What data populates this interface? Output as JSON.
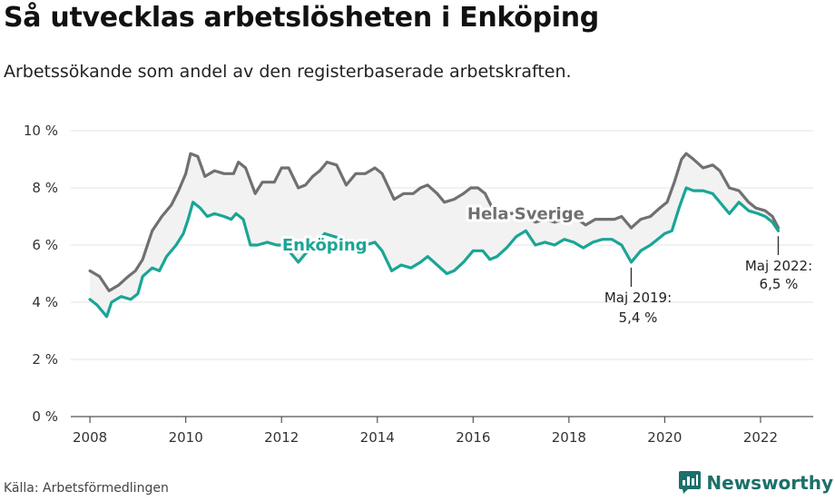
{
  "title": "Så utvecklas arbetslösheten i Enköping",
  "subtitle": "Arbetssökande som andel av den registerbaserade arbetskraften.",
  "source": "Källa: Arbetsförmedlingen",
  "brand": {
    "name": "Newsworthy",
    "icon": "newsworthy-logo-icon"
  },
  "colors": {
    "sweden": "#707070",
    "enkoping": "#1aa596",
    "fill": "#f2f2f2",
    "grid": "#e3e3e3",
    "axis": "#555555"
  },
  "chart_data": {
    "type": "line",
    "title": "Så utvecklas arbetslösheten i Enköping",
    "ylim": [
      0,
      10
    ],
    "xlim": [
      2007.6,
      2023.1
    ],
    "y_ticks": [
      0,
      2,
      4,
      6,
      8,
      10
    ],
    "y_tick_labels": [
      "0 %",
      "2 %",
      "4 %",
      "6 %",
      "8 %",
      "10 %"
    ],
    "x_ticks": [
      2008,
      2010,
      2012,
      2014,
      2016,
      2018,
      2020,
      2022
    ],
    "x_tick_labels": [
      "2008",
      "2010",
      "2012",
      "2014",
      "2016",
      "2018",
      "2020",
      "2022"
    ],
    "series": [
      {
        "name": "Hela Sverige",
        "label": "Hela Sverige",
        "points": [
          [
            2008.0,
            5.1
          ],
          [
            2008.2,
            4.9
          ],
          [
            2008.4,
            4.4
          ],
          [
            2008.6,
            4.6
          ],
          [
            2008.8,
            4.9
          ],
          [
            2008.95,
            5.1
          ],
          [
            2009.1,
            5.5
          ],
          [
            2009.3,
            6.5
          ],
          [
            2009.5,
            7.0
          ],
          [
            2009.7,
            7.4
          ],
          [
            2009.85,
            7.9
          ],
          [
            2010.0,
            8.5
          ],
          [
            2010.1,
            9.2
          ],
          [
            2010.25,
            9.1
          ],
          [
            2010.4,
            8.4
          ],
          [
            2010.6,
            8.6
          ],
          [
            2010.8,
            8.5
          ],
          [
            2011.0,
            8.5
          ],
          [
            2011.1,
            8.9
          ],
          [
            2011.25,
            8.7
          ],
          [
            2011.45,
            7.8
          ],
          [
            2011.6,
            8.2
          ],
          [
            2011.85,
            8.2
          ],
          [
            2012.0,
            8.7
          ],
          [
            2012.15,
            8.7
          ],
          [
            2012.35,
            8.0
          ],
          [
            2012.5,
            8.1
          ],
          [
            2012.65,
            8.4
          ],
          [
            2012.8,
            8.6
          ],
          [
            2012.95,
            8.9
          ],
          [
            2013.15,
            8.8
          ],
          [
            2013.35,
            8.1
          ],
          [
            2013.55,
            8.5
          ],
          [
            2013.75,
            8.5
          ],
          [
            2013.95,
            8.7
          ],
          [
            2014.1,
            8.5
          ],
          [
            2014.35,
            7.6
          ],
          [
            2014.55,
            7.8
          ],
          [
            2014.75,
            7.8
          ],
          [
            2014.9,
            8.0
          ],
          [
            2015.05,
            8.1
          ],
          [
            2015.25,
            7.8
          ],
          [
            2015.4,
            7.5
          ],
          [
            2015.6,
            7.6
          ],
          [
            2015.8,
            7.8
          ],
          [
            2015.95,
            8.0
          ],
          [
            2016.1,
            8.0
          ],
          [
            2016.25,
            7.8
          ],
          [
            2016.4,
            7.3
          ],
          [
            2016.6,
            7.2
          ],
          [
            2016.8,
            7.1
          ],
          [
            2016.95,
            7.2
          ],
          [
            2017.1,
            7.0
          ],
          [
            2017.3,
            6.8
          ],
          [
            2017.5,
            6.9
          ],
          [
            2017.7,
            6.8
          ],
          [
            2017.9,
            6.9
          ],
          [
            2018.1,
            7.0
          ],
          [
            2018.35,
            6.7
          ],
          [
            2018.55,
            6.9
          ],
          [
            2018.75,
            6.9
          ],
          [
            2018.95,
            6.9
          ],
          [
            2019.1,
            7.0
          ],
          [
            2019.3,
            6.6
          ],
          [
            2019.5,
            6.9
          ],
          [
            2019.7,
            7.0
          ],
          [
            2019.9,
            7.3
          ],
          [
            2020.05,
            7.5
          ],
          [
            2020.2,
            8.2
          ],
          [
            2020.35,
            9.0
          ],
          [
            2020.45,
            9.2
          ],
          [
            2020.6,
            9.0
          ],
          [
            2020.8,
            8.7
          ],
          [
            2021.0,
            8.8
          ],
          [
            2021.15,
            8.6
          ],
          [
            2021.35,
            8.0
          ],
          [
            2021.55,
            7.9
          ],
          [
            2021.75,
            7.5
          ],
          [
            2021.9,
            7.3
          ],
          [
            2022.1,
            7.2
          ],
          [
            2022.25,
            7.0
          ],
          [
            2022.37,
            6.6
          ]
        ]
      },
      {
        "name": "Enköping",
        "label": "Enköping",
        "points": [
          [
            2008.0,
            4.1
          ],
          [
            2008.15,
            3.9
          ],
          [
            2008.35,
            3.5
          ],
          [
            2008.45,
            4.0
          ],
          [
            2008.65,
            4.2
          ],
          [
            2008.85,
            4.1
          ],
          [
            2009.0,
            4.3
          ],
          [
            2009.1,
            4.9
          ],
          [
            2009.3,
            5.2
          ],
          [
            2009.45,
            5.1
          ],
          [
            2009.6,
            5.6
          ],
          [
            2009.8,
            6.0
          ],
          [
            2009.95,
            6.4
          ],
          [
            2010.05,
            6.9
          ],
          [
            2010.15,
            7.5
          ],
          [
            2010.3,
            7.3
          ],
          [
            2010.45,
            7.0
          ],
          [
            2010.6,
            7.1
          ],
          [
            2010.8,
            7.0
          ],
          [
            2010.95,
            6.9
          ],
          [
            2011.05,
            7.1
          ],
          [
            2011.2,
            6.9
          ],
          [
            2011.35,
            6.0
          ],
          [
            2011.5,
            6.0
          ],
          [
            2011.7,
            6.1
          ],
          [
            2011.9,
            6.0
          ],
          [
            2012.05,
            6.0
          ],
          [
            2012.2,
            5.7
          ],
          [
            2012.35,
            5.4
          ],
          [
            2012.5,
            5.7
          ],
          [
            2012.7,
            6.0
          ],
          [
            2012.9,
            6.4
          ],
          [
            2013.1,
            6.3
          ],
          [
            2013.3,
            6.2
          ],
          [
            2013.5,
            6.1
          ],
          [
            2013.75,
            6.0
          ],
          [
            2013.95,
            6.1
          ],
          [
            2014.1,
            5.8
          ],
          [
            2014.3,
            5.1
          ],
          [
            2014.5,
            5.3
          ],
          [
            2014.7,
            5.2
          ],
          [
            2014.9,
            5.4
          ],
          [
            2015.05,
            5.6
          ],
          [
            2015.25,
            5.3
          ],
          [
            2015.45,
            5.0
          ],
          [
            2015.6,
            5.1
          ],
          [
            2015.8,
            5.4
          ],
          [
            2016.0,
            5.8
          ],
          [
            2016.2,
            5.8
          ],
          [
            2016.35,
            5.5
          ],
          [
            2016.5,
            5.6
          ],
          [
            2016.7,
            5.9
          ],
          [
            2016.9,
            6.3
          ],
          [
            2017.1,
            6.5
          ],
          [
            2017.3,
            6.0
          ],
          [
            2017.5,
            6.1
          ],
          [
            2017.7,
            6.0
          ],
          [
            2017.9,
            6.2
          ],
          [
            2018.1,
            6.1
          ],
          [
            2018.3,
            5.9
          ],
          [
            2018.5,
            6.1
          ],
          [
            2018.7,
            6.2
          ],
          [
            2018.9,
            6.2
          ],
          [
            2019.1,
            6.0
          ],
          [
            2019.3,
            5.4
          ],
          [
            2019.5,
            5.8
          ],
          [
            2019.7,
            6.0
          ],
          [
            2019.85,
            6.2
          ],
          [
            2020.0,
            6.4
          ],
          [
            2020.15,
            6.5
          ],
          [
            2020.3,
            7.3
          ],
          [
            2020.45,
            8.0
          ],
          [
            2020.6,
            7.9
          ],
          [
            2020.8,
            7.9
          ],
          [
            2021.0,
            7.8
          ],
          [
            2021.2,
            7.4
          ],
          [
            2021.35,
            7.1
          ],
          [
            2021.55,
            7.5
          ],
          [
            2021.75,
            7.2
          ],
          [
            2021.95,
            7.1
          ],
          [
            2022.1,
            7.0
          ],
          [
            2022.25,
            6.8
          ],
          [
            2022.37,
            6.5
          ]
        ]
      }
    ],
    "annotations": [
      {
        "label_line1": "Maj 2019:",
        "label_line2": "5,4 %",
        "x": 2019.3,
        "y": 5.4
      },
      {
        "label_line1": "Maj 2022:",
        "label_line2": "6,5 %",
        "x": 2022.37,
        "y": 6.5
      }
    ]
  }
}
